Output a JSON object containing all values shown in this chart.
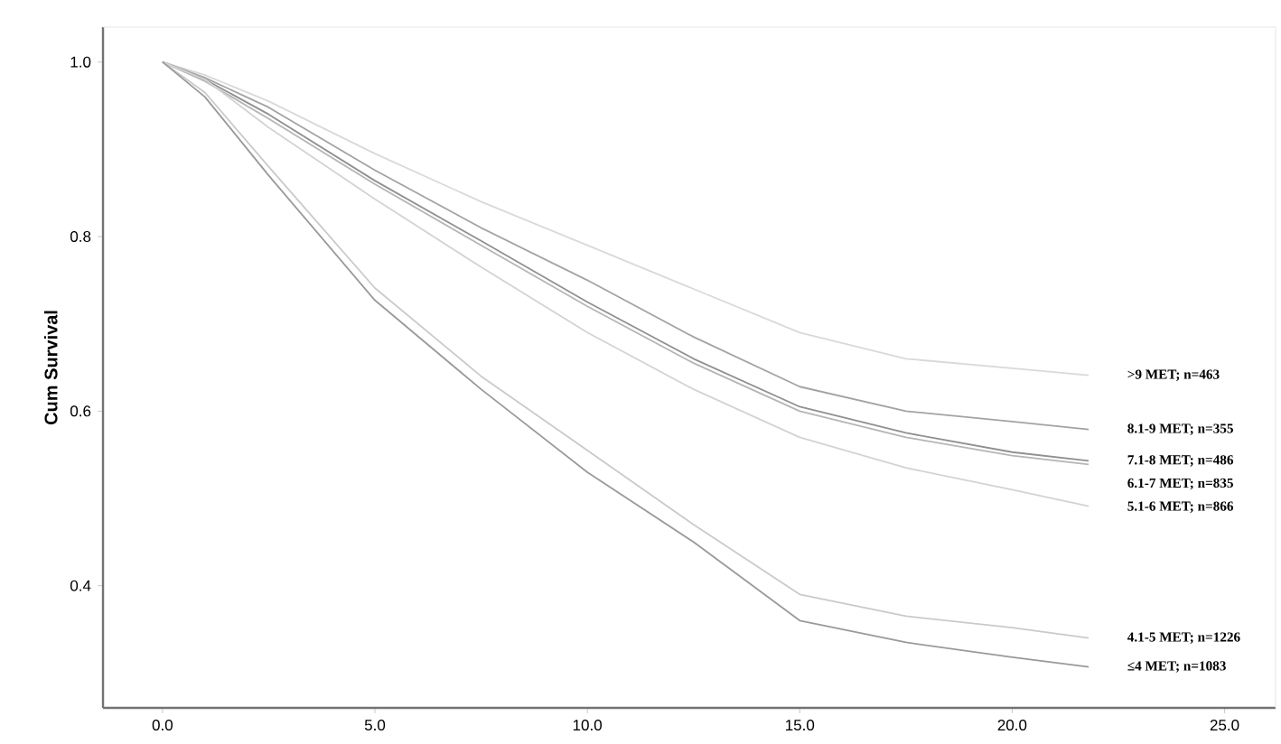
{
  "chart_data": {
    "type": "line",
    "ylabel": "Cum Survival",
    "xlim": [
      -1.4,
      26.2
    ],
    "ylim": [
      0.26,
      1.04
    ],
    "xticks": [
      {
        "value": 0,
        "label": "0.0"
      },
      {
        "value": 5,
        "label": "5.0"
      },
      {
        "value": 10,
        "label": "10.0"
      },
      {
        "value": 15,
        "label": "15.0"
      },
      {
        "value": 20,
        "label": "20.0"
      },
      {
        "value": 25,
        "label": "25.0"
      }
    ],
    "yticks": [
      {
        "value": 0.4,
        "label": "0.4"
      },
      {
        "value": 0.6,
        "label": "0.6"
      },
      {
        "value": 0.8,
        "label": "0.8"
      },
      {
        "value": 1.0,
        "label": "1.0"
      }
    ],
    "x": [
      0,
      1,
      2.5,
      5,
      7.5,
      10,
      12.5,
      15,
      17.5,
      20,
      21.8
    ],
    "grid": false,
    "series": [
      {
        "name": ">9 MET; n=463",
        "color": "#d9d9d9",
        "values": [
          1,
          0.985,
          0.955,
          0.895,
          0.84,
          0.79,
          0.74,
          0.69,
          0.66,
          0.649,
          0.641
        ]
      },
      {
        "name": "8.1-9 MET; n=355",
        "color": "#a3a3a3",
        "values": [
          1,
          0.982,
          0.948,
          0.876,
          0.81,
          0.75,
          0.685,
          0.628,
          0.6,
          0.588,
          0.579
        ]
      },
      {
        "name": "7.1-8 MET; n=486",
        "color": "#909090",
        "values": [
          1,
          0.98,
          0.94,
          0.864,
          0.795,
          0.725,
          0.66,
          0.605,
          0.575,
          0.553,
          0.543
        ]
      },
      {
        "name": "6.1-7 MET; n=835",
        "color": "#b5b5b5",
        "values": [
          1,
          0.978,
          0.935,
          0.86,
          0.79,
          0.72,
          0.655,
          0.6,
          0.57,
          0.549,
          0.539
        ]
      },
      {
        "name": "5.1-6 MET; n=866",
        "color": "#d3d3d3",
        "values": [
          1,
          0.98,
          0.925,
          0.843,
          0.765,
          0.69,
          0.625,
          0.57,
          0.535,
          0.51,
          0.491
        ]
      },
      {
        "name": "4.1-5 MET; n=1226",
        "color": "#cacaca",
        "values": [
          1,
          0.965,
          0.88,
          0.741,
          0.64,
          0.555,
          0.47,
          0.39,
          0.365,
          0.352,
          0.34
        ]
      },
      {
        "name": "≤4 MET; n=1083",
        "color": "#9a9a9a",
        "values": [
          1,
          0.96,
          0.87,
          0.727,
          0.625,
          0.53,
          0.45,
          0.36,
          0.335,
          0.318,
          0.307
        ]
      }
    ]
  }
}
